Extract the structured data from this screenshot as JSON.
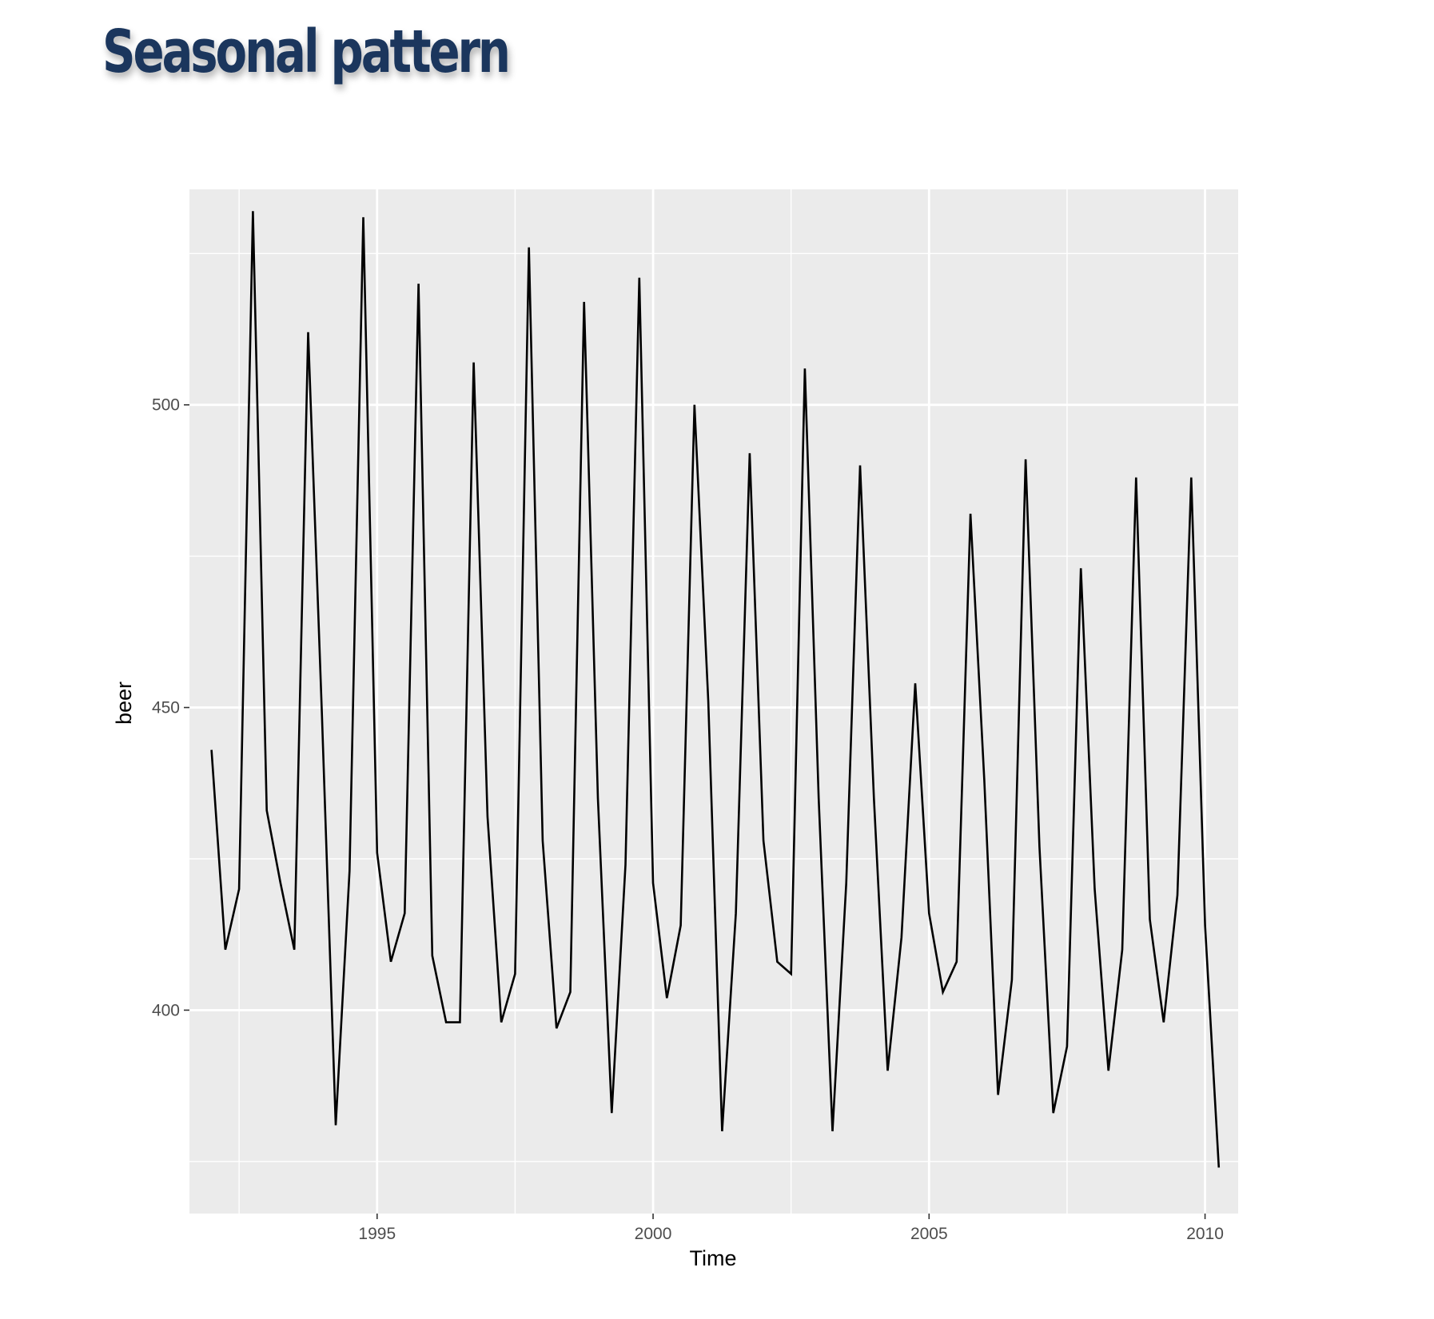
{
  "slide": {
    "title": "Seasonal pattern"
  },
  "chart_data": {
    "type": "line",
    "title": "",
    "xlabel": "Time",
    "ylabel": "beer",
    "xlim": [
      1991.6,
      2010.6
    ],
    "ylim": [
      366.4,
      535.6
    ],
    "xticks": [
      1995,
      2000,
      2005,
      2010
    ],
    "yticks": [
      400,
      450,
      500
    ],
    "xminor": [
      1992.5,
      1997.5,
      2002.5,
      2007.5
    ],
    "yminor": [
      375,
      425,
      475,
      525
    ],
    "grid": true,
    "legend": "none",
    "colors": {
      "panel": "#ebebeb",
      "grid": "#ffffff",
      "line": "#000000"
    },
    "series": [
      {
        "x": [
          1992.0,
          1992.25,
          1992.5,
          1992.75,
          1993.0,
          1993.25,
          1993.5,
          1993.75,
          1994.0,
          1994.25,
          1994.5,
          1994.75,
          1995.0,
          1995.25,
          1995.5,
          1995.75,
          1996.0,
          1996.25,
          1996.5,
          1996.75,
          1997.0,
          1997.25,
          1997.5,
          1997.75,
          1998.0,
          1998.25,
          1998.5,
          1998.75,
          1999.0,
          1999.25,
          1999.5,
          1999.75,
          2000.0,
          2000.25,
          2000.5,
          2000.75,
          2001.0,
          2001.25,
          2001.5,
          2001.75,
          2002.0,
          2002.25,
          2002.5,
          2002.75,
          2003.0,
          2003.25,
          2003.5,
          2003.75,
          2004.0,
          2004.25,
          2004.5,
          2004.75,
          2005.0,
          2005.25,
          2005.5,
          2005.75,
          2006.0,
          2006.25,
          2006.5,
          2006.75,
          2007.0,
          2007.25,
          2007.5,
          2007.75,
          2008.0,
          2008.25,
          2008.5,
          2008.75,
          2009.0,
          2009.25,
          2009.5,
          2009.75,
          2010.0,
          2010.25
        ],
        "values": [
          443,
          410,
          420,
          532,
          433,
          421,
          410,
          512,
          449,
          381,
          423,
          531,
          426,
          408,
          416,
          520,
          409,
          398,
          398,
          507,
          432,
          398,
          406,
          526,
          428,
          397,
          403,
          517,
          435,
          383,
          424,
          521,
          421,
          402,
          414,
          500,
          451,
          380,
          416,
          492,
          428,
          408,
          406,
          506,
          435,
          380,
          421,
          490,
          435,
          390,
          412,
          454,
          416,
          403,
          408,
          482,
          438,
          386,
          405,
          491,
          427,
          383,
          394,
          473,
          420,
          390,
          410,
          488,
          415,
          398,
          419,
          488,
          414,
          374
        ]
      }
    ]
  }
}
